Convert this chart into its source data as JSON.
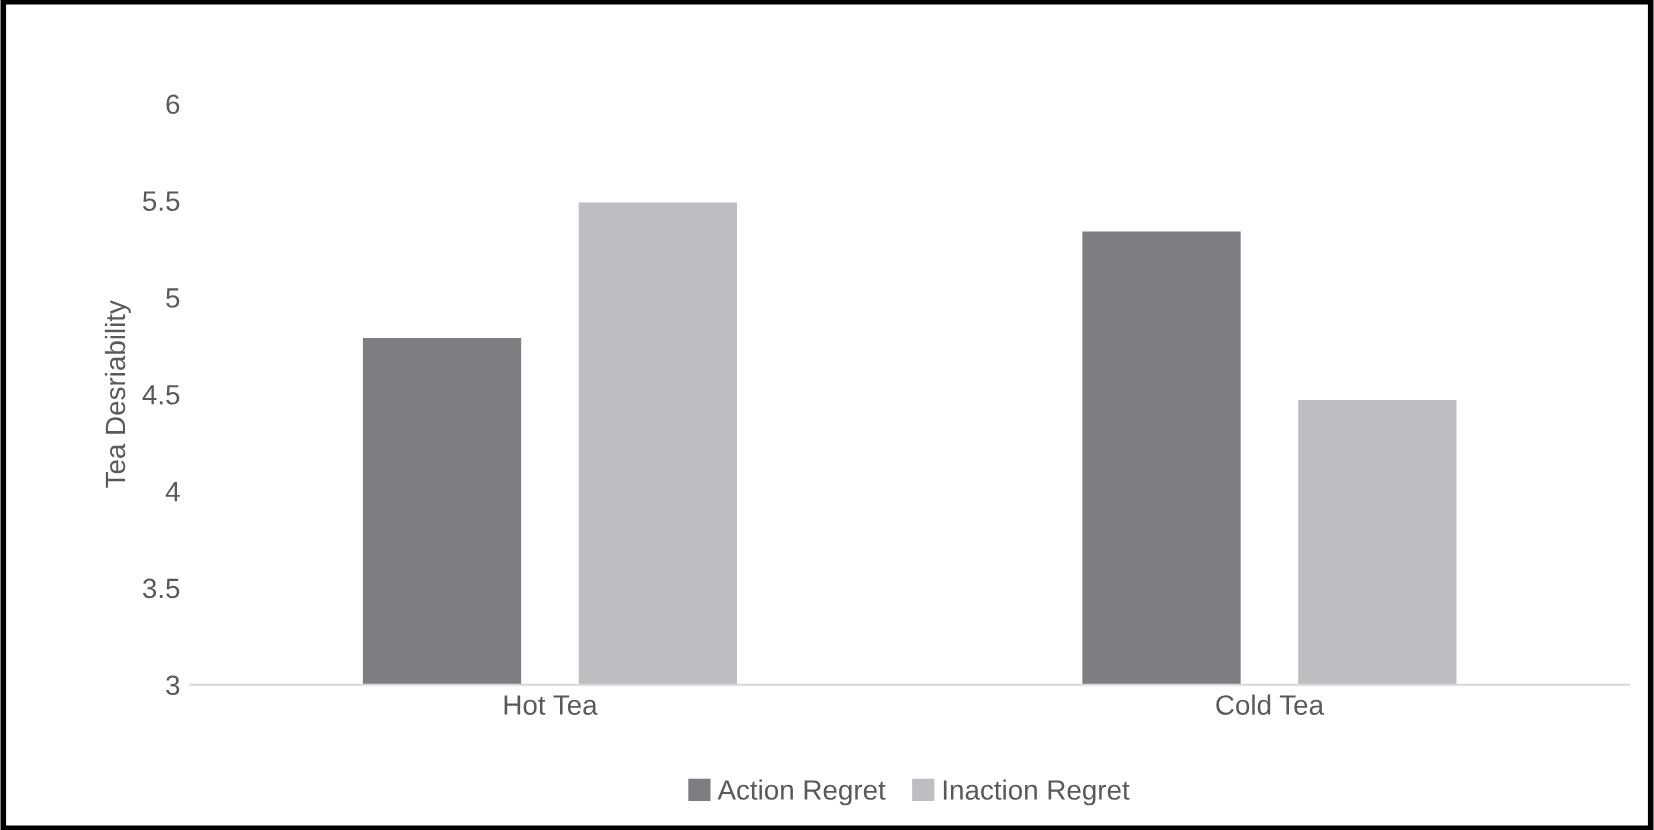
{
  "chart_data": {
    "type": "bar",
    "ylabel": "Tea Desriability",
    "categories": [
      "Hot Tea",
      "Cold Tea"
    ],
    "series": [
      {
        "name": "Action Regret",
        "color": "#7d7e82",
        "values": [
          4.79,
          5.34
        ]
      },
      {
        "name": "Inaction Regret",
        "color": "#bdbec2",
        "values": [
          5.49,
          4.47
        ]
      }
    ],
    "ylim": [
      3,
      6
    ],
    "yticks": [
      3,
      3.5,
      4,
      4.5,
      5,
      5.5,
      6
    ],
    "grid": false,
    "legend": "bottom"
  }
}
